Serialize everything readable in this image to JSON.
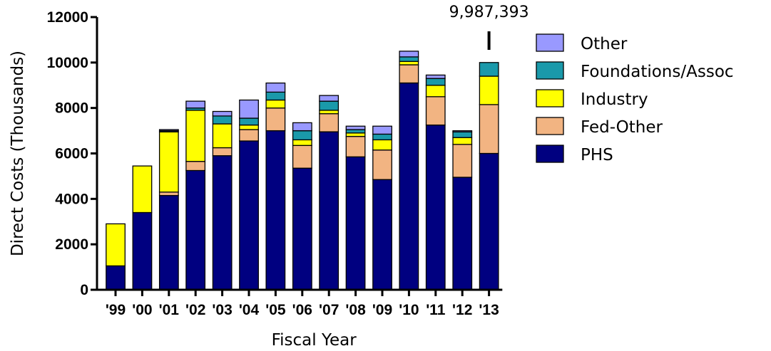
{
  "chart_data": {
    "type": "bar",
    "stacked": true,
    "title": "",
    "xlabel": "Fiscal Year",
    "ylabel": "Direct Costs (Thousands)",
    "ylim": [
      0,
      12000
    ],
    "yticks": [
      "0",
      "2000",
      "4000",
      "6000",
      "8000",
      "10000",
      "12000"
    ],
    "categories": [
      "'99",
      "'00",
      "'01",
      "'02",
      "'03",
      "'04",
      "'05",
      "'06",
      "'07",
      "'08",
      "'09",
      "'10",
      "'11",
      "'12",
      "'13"
    ],
    "series": [
      {
        "name": "PHS",
        "color": "#000080",
        "values": [
          1050,
          3400,
          4150,
          5250,
          5900,
          6550,
          7000,
          5350,
          6950,
          5850,
          4850,
          9100,
          7250,
          4950,
          6000
        ]
      },
      {
        "name": "Fed-Other",
        "color": "#F2B482",
        "values": [
          0,
          0,
          150,
          400,
          350,
          500,
          1000,
          1000,
          800,
          900,
          1300,
          800,
          1250,
          1450,
          2150
        ]
      },
      {
        "name": "Industry",
        "color": "#FFFF00",
        "values": [
          1850,
          2050,
          2650,
          2250,
          1050,
          200,
          350,
          250,
          150,
          150,
          450,
          150,
          500,
          300,
          1250
        ]
      },
      {
        "name": "Foundations/Assoc",
        "color": "#1A99AA",
        "values": [
          0,
          0,
          50,
          100,
          350,
          300,
          350,
          400,
          400,
          150,
          250,
          200,
          300,
          250,
          600
        ]
      },
      {
        "name": "Other",
        "color": "#9999FF",
        "values": [
          0,
          0,
          50,
          300,
          200,
          800,
          400,
          350,
          250,
          150,
          350,
          250,
          150,
          50,
          0
        ]
      }
    ],
    "legend_order": [
      "Other",
      "Foundations/Assoc",
      "Industry",
      "Fed-Other",
      "PHS"
    ],
    "legend_position": "right",
    "annotations": [
      {
        "text": "9,987,393",
        "category": "'13"
      }
    ],
    "grid": false
  }
}
